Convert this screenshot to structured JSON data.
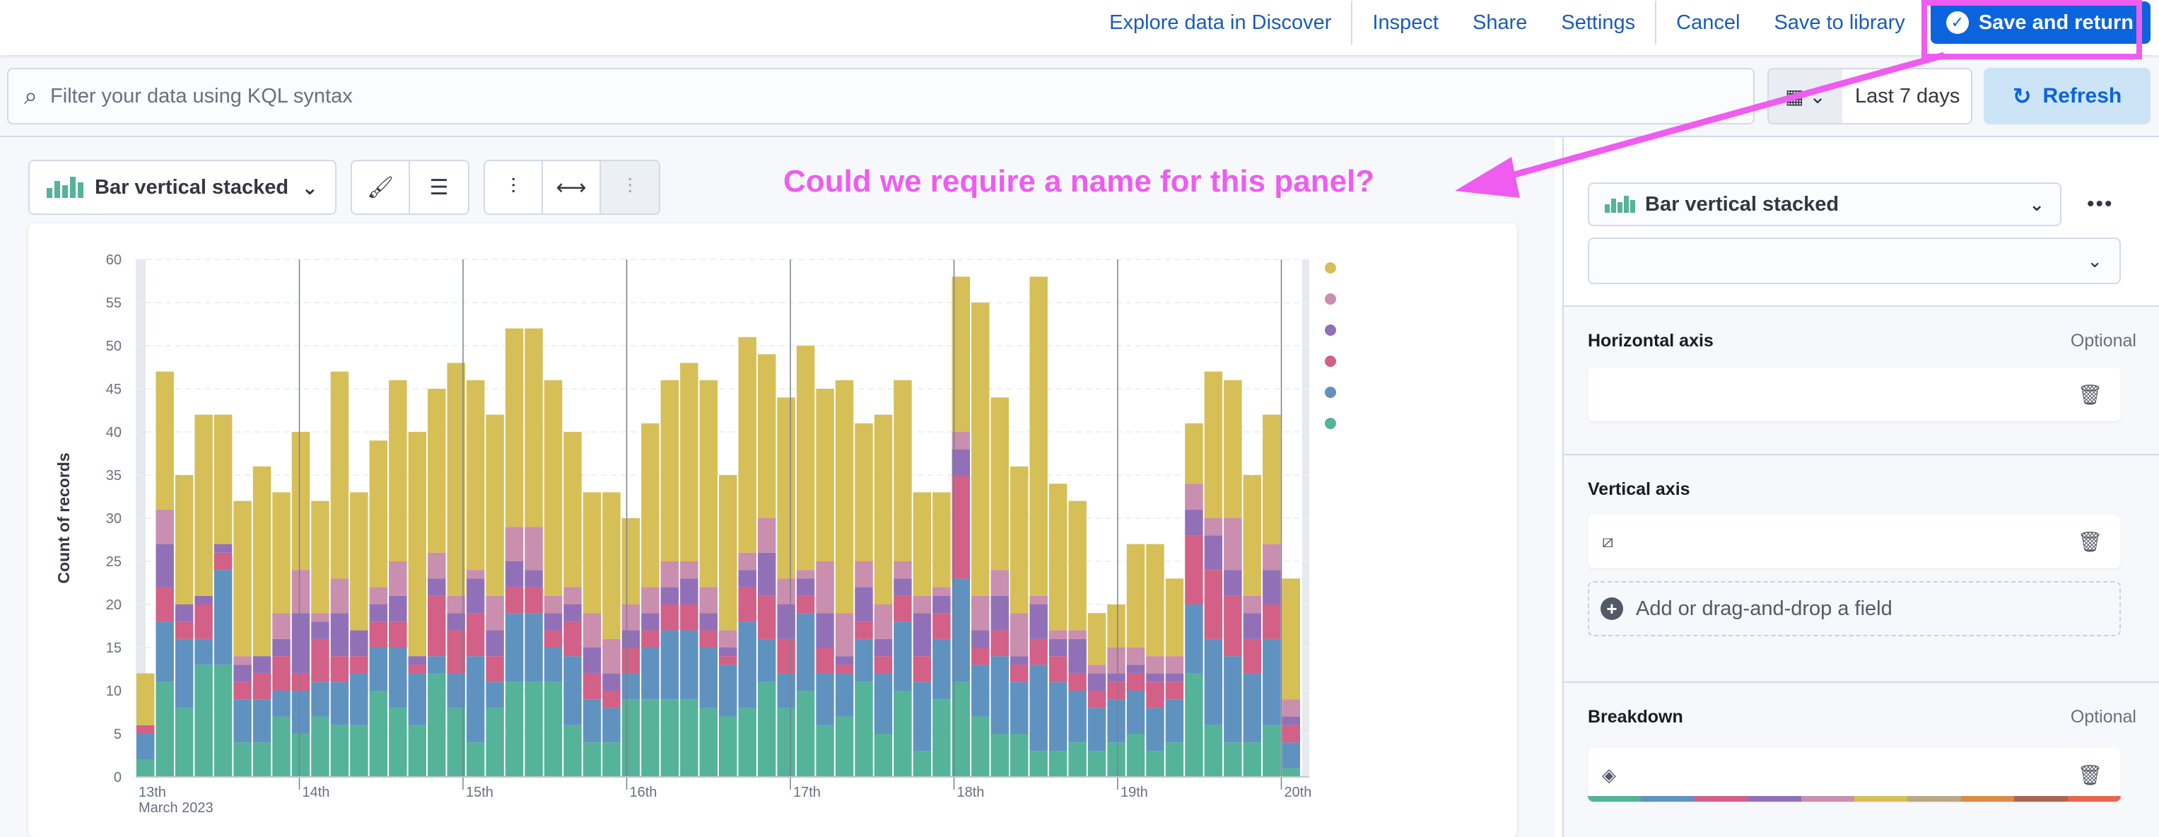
{
  "topbar": {
    "links": [
      "Explore data in Discover",
      "Inspect",
      "Share",
      "Settings",
      "Cancel",
      "Save to library"
    ],
    "save_and_return": "Save and return"
  },
  "query": {
    "placeholder": "Filter your data using KQL syntax",
    "date_range": "Last 7 days",
    "refresh_label": "Refresh"
  },
  "workspace": {
    "vis_type": "Bar vertical stacked",
    "annotation": "Could we require a name for this panel?",
    "toolbar_icons": [
      "paint-brush-icon",
      "legend-icon",
      "left-axis-icon",
      "bottom-axis-icon",
      "right-axis-icon"
    ]
  },
  "config": {
    "vis_type": "Bar vertical stacked",
    "horizontal_axis": {
      "title": "Horizontal axis",
      "optional": "Optional"
    },
    "vertical_axis": {
      "title": "Vertical axis"
    },
    "add_field": "Add or drag-and-drop a field",
    "breakdown": {
      "title": "Breakdown",
      "optional": "Optional"
    },
    "palette": [
      "#54b399",
      "#6092c0",
      "#d36086",
      "#9170b8",
      "#ca8eae",
      "#d6bf57",
      "#b9a888",
      "#da8b45",
      "#aa6556",
      "#e7664c"
    ]
  },
  "chart_data": {
    "type": "bar",
    "stacked": true,
    "ylabel": "Count of records",
    "ylim": [
      0,
      60
    ],
    "yticks": [
      0,
      5,
      10,
      15,
      20,
      25,
      30,
      35,
      40,
      45,
      50,
      55,
      60
    ],
    "xtick_labels": [
      "13th\nMarch 2023",
      "14th",
      "15th",
      "16th",
      "17th",
      "18th",
      "19th",
      "20th"
    ],
    "legend_colors": [
      "#d6bf57",
      "#ca8eae",
      "#9170b8",
      "#d36086",
      "#6092c0",
      "#54b399"
    ],
    "series_colors": [
      "#54b399",
      "#6092c0",
      "#d36086",
      "#9170b8",
      "#ca8eae",
      "#d6bf57"
    ],
    "bars": [
      [
        2,
        3,
        1,
        0,
        0,
        6
      ],
      [
        11,
        7,
        4,
        5,
        4,
        16
      ],
      [
        8,
        8,
        2,
        2,
        0,
        15
      ],
      [
        13,
        3,
        4,
        1,
        0,
        21
      ],
      [
        13,
        11,
        2,
        1,
        0,
        15
      ],
      [
        4,
        5,
        2,
        2,
        1,
        18
      ],
      [
        4,
        5,
        3,
        2,
        0,
        22
      ],
      [
        7,
        3,
        4,
        2,
        3,
        14
      ],
      [
        5,
        5,
        2,
        7,
        5,
        16
      ],
      [
        7,
        4,
        5,
        2,
        1,
        13
      ],
      [
        6,
        5,
        3,
        5,
        4,
        24
      ],
      [
        6,
        6,
        2,
        3,
        0,
        16
      ],
      [
        10,
        5,
        3,
        2,
        2,
        17
      ],
      [
        8,
        7,
        3,
        3,
        4,
        21
      ],
      [
        6,
        6,
        1,
        1,
        0,
        26
      ],
      [
        12,
        2,
        7,
        2,
        3,
        19
      ],
      [
        8,
        4,
        5,
        2,
        2,
        27
      ],
      [
        4,
        10,
        5,
        4,
        1,
        22
      ],
      [
        8,
        3,
        3,
        3,
        4,
        21
      ],
      [
        11,
        8,
        3,
        3,
        4,
        23
      ],
      [
        11,
        8,
        3,
        2,
        5,
        23
      ],
      [
        11,
        4,
        2,
        2,
        2,
        25
      ],
      [
        6,
        8,
        4,
        2,
        2,
        18
      ],
      [
        4,
        5,
        3,
        3,
        4,
        14
      ],
      [
        4,
        4,
        2,
        2,
        4,
        17
      ],
      [
        9,
        3,
        3,
        2,
        3,
        10
      ],
      [
        9,
        6,
        2,
        2,
        3,
        19
      ],
      [
        9,
        8,
        3,
        2,
        3,
        21
      ],
      [
        9,
        8,
        3,
        3,
        2,
        23
      ],
      [
        8,
        7,
        2,
        2,
        3,
        24
      ],
      [
        7,
        6,
        1,
        1,
        2,
        18
      ],
      [
        8,
        10,
        4,
        2,
        2,
        25
      ],
      [
        11,
        5,
        5,
        5,
        4,
        19
      ],
      [
        8,
        4,
        4,
        4,
        3,
        21
      ],
      [
        10,
        9,
        2,
        2,
        1,
        26
      ],
      [
        6,
        6,
        3,
        4,
        6,
        20
      ],
      [
        7,
        5,
        1,
        1,
        5,
        27
      ],
      [
        11,
        5,
        2,
        4,
        3,
        16
      ],
      [
        5,
        7,
        2,
        2,
        4,
        22
      ],
      [
        10,
        8,
        3,
        2,
        2,
        21
      ],
      [
        3,
        8,
        3,
        5,
        2,
        12
      ],
      [
        9,
        7,
        3,
        2,
        1,
        11
      ],
      [
        11,
        12,
        12,
        3,
        2,
        18
      ],
      [
        7,
        6,
        2,
        2,
        4,
        34
      ],
      [
        5,
        9,
        3,
        4,
        3,
        20
      ],
      [
        5,
        6,
        2,
        1,
        5,
        17
      ],
      [
        3,
        10,
        3,
        4,
        1,
        37
      ],
      [
        3,
        8,
        3,
        2,
        1,
        17
      ],
      [
        4,
        6,
        2,
        4,
        1,
        15
      ],
      [
        3,
        5,
        2,
        2,
        1,
        6
      ],
      [
        4,
        5,
        2,
        1,
        3,
        5
      ],
      [
        5,
        5,
        2,
        1,
        2,
        12
      ],
      [
        3,
        5,
        3,
        1,
        2,
        13
      ],
      [
        4,
        5,
        2,
        1,
        2,
        9
      ],
      [
        12,
        8,
        8,
        3,
        3,
        7
      ],
      [
        6,
        10,
        8,
        4,
        2,
        17
      ],
      [
        4,
        10,
        7,
        3,
        6,
        16
      ],
      [
        4,
        8,
        4,
        3,
        2,
        14
      ],
      [
        6,
        10,
        4,
        4,
        3,
        15
      ],
      [
        1,
        3,
        2,
        1,
        2,
        14
      ]
    ]
  }
}
